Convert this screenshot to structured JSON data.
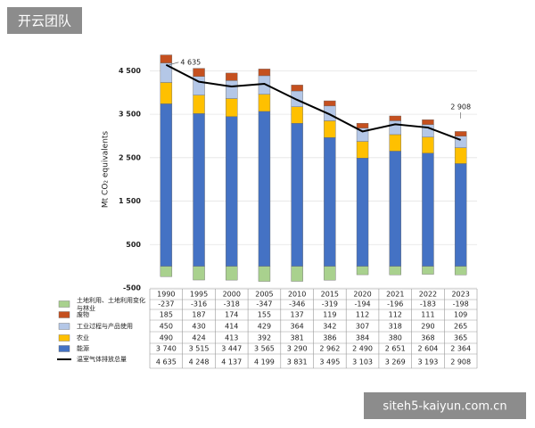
{
  "chart_data": {
    "type": "bar",
    "stacked": true,
    "y_label": "Mt CO₂ equivalents",
    "categories": [
      "1990",
      "1995",
      "2000",
      "2005",
      "2010",
      "2015",
      "2020",
      "2021",
      "2022",
      "2023"
    ],
    "series": [
      {
        "name": "土地利用、土地利用变化与林业",
        "color": "#a9d18e",
        "values": [
          -237,
          -316,
          -318,
          -347,
          -346,
          -319,
          -194,
          -196,
          -183,
          -198
        ]
      },
      {
        "name": "废物",
        "color": "#c5501f",
        "values": [
          185,
          187,
          174,
          155,
          137,
          119,
          112,
          112,
          111,
          109
        ]
      },
      {
        "name": "工业过程与产品使用",
        "color": "#b4c7e7",
        "values": [
          450,
          430,
          414,
          429,
          364,
          342,
          307,
          318,
          290,
          265
        ]
      },
      {
        "name": "农业",
        "color": "#ffc000",
        "values": [
          490,
          424,
          413,
          392,
          381,
          386,
          384,
          380,
          368,
          365
        ]
      },
      {
        "name": "能源",
        "color": "#4472c4",
        "values": [
          3740,
          3515,
          3447,
          3565,
          3290,
          2962,
          2490,
          2651,
          2604,
          2364
        ],
        "value_labels": [
          "3 740",
          "3 515",
          "3 447",
          "3 565",
          "3 290",
          "2 962",
          "2 490",
          "2 651",
          "2 604",
          "2 364"
        ]
      }
    ],
    "line": {
      "name": "温室气体排放总量",
      "color": "#000000",
      "values": [
        4635,
        4248,
        4137,
        4199,
        3831,
        3495,
        3103,
        3269,
        3193,
        2908
      ],
      "value_labels": [
        "4 635",
        "4 248",
        "4 137",
        "4 199",
        "3 831",
        "3 495",
        "3 103",
        "3 269",
        "3 193",
        "2 908"
      ]
    },
    "ylim": [
      -500,
      5000
    ],
    "yticks": [
      -500,
      500,
      {
        "value": 1500,
        "label": "1 500"
      },
      {
        "value": 2500,
        "label": "2 500"
      },
      {
        "value": 3500,
        "label": "3 500"
      },
      {
        "value": 4500,
        "label": "4 500"
      }
    ],
    "grid": true
  },
  "watermarks": [
    "开云团队",
    "siteh5-kaiyun.com.cn"
  ]
}
